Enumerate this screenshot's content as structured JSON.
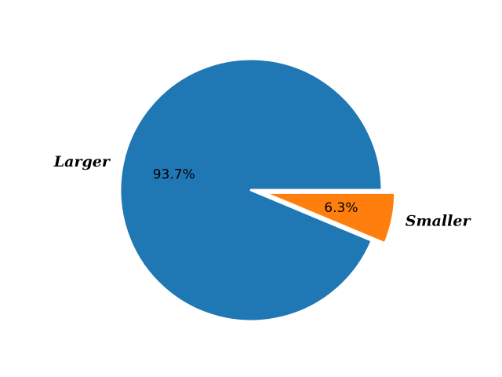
{
  "chart_data": {
    "type": "pie",
    "title": "",
    "slices": [
      {
        "label": "Larger",
        "value": 93.7,
        "pct_label": "93.7%",
        "color": "#1f77b4",
        "exploded": false
      },
      {
        "label": "Smaller",
        "value": 6.3,
        "pct_label": "6.3%",
        "color": "#ff7f0e",
        "exploded": true
      }
    ],
    "legend": "none"
  }
}
